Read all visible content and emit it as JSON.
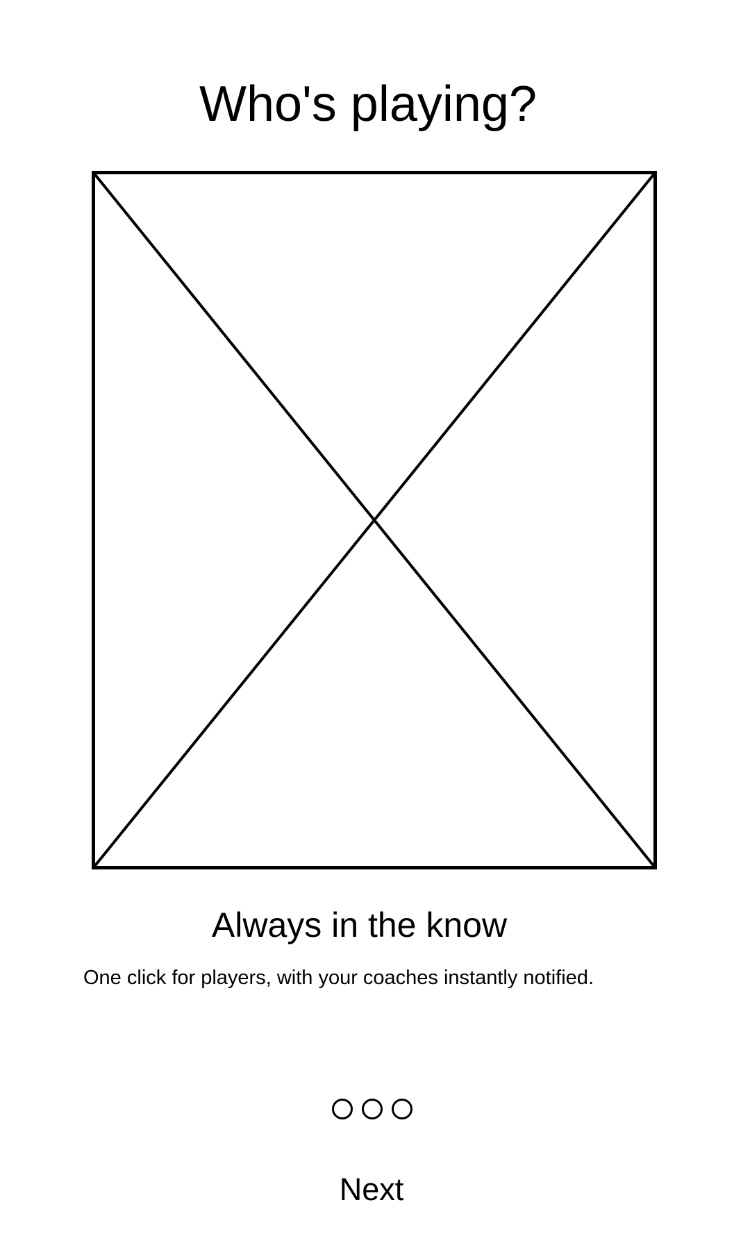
{
  "screen": {
    "title": "Who's playing?",
    "image": {
      "kind": "placeholder-image",
      "icon": "crossed-box-placeholder"
    },
    "slide": {
      "heading": "Always in the know",
      "description": "One click for players, with your coaches instantly notified."
    },
    "pager": {
      "dots": 3,
      "active_index": null
    },
    "next_label": "Next"
  },
  "colors": {
    "background": "#ffffff",
    "foreground": "#000000"
  }
}
